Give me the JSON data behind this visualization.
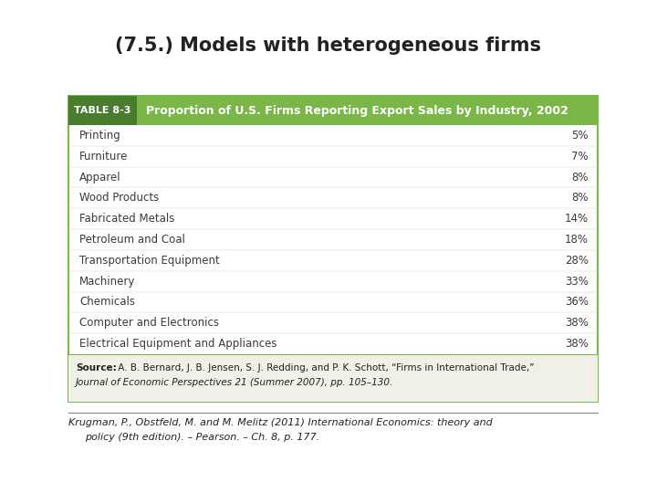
{
  "title": "(7.5.) Models with heterogeneous firms",
  "table_label": "TABLE 8-3",
  "table_title": "Proportion of U.S. Firms Reporting Export Sales by Industry, 2002",
  "rows": [
    [
      "Printing",
      "5%"
    ],
    [
      "Furniture",
      "7%"
    ],
    [
      "Apparel",
      "8%"
    ],
    [
      "Wood Products",
      "8%"
    ],
    [
      "Fabricated Metals",
      "14%"
    ],
    [
      "Petroleum and Coal",
      "18%"
    ],
    [
      "Transportation Equipment",
      "28%"
    ],
    [
      "Machinery",
      "33%"
    ],
    [
      "Chemicals",
      "36%"
    ],
    [
      "Computer and Electronics",
      "38%"
    ],
    [
      "Electrical Equipment and Appliances",
      "38%"
    ]
  ],
  "source_bold": "Source:",
  "source_line1": " A. B. Bernard, J. B. Jensen, S. J. Redding, and P. K. Schott, “Firms in International Trade,”",
  "source_line2": "Journal of Economic Perspectives 21 (Summer 2007), pp. 105–130.",
  "footer_line1": "Krugman, P., Obstfeld, M. and M. Melitz (2011) International Economics: theory and",
  "footer_line2": "    policy (9th edition). – Pearson. – Ch. 8, p. 177.",
  "header_green": "#7ab648",
  "header_label_bg": "#4a7c2f",
  "table_border_color": "#7ab648",
  "body_text_color": "#3a3a3a",
  "source_bg": "#f0f0e8",
  "bg_color": "#ffffff"
}
